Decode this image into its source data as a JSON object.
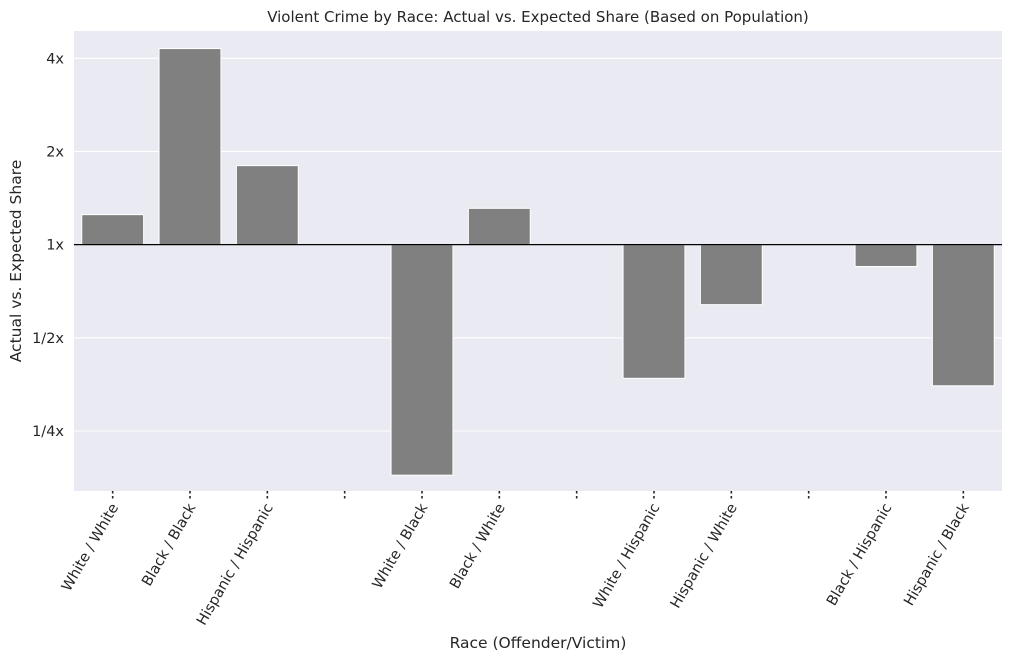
{
  "chart_data": {
    "type": "bar",
    "title": "Violent Crime by Race: Actual vs. Expected Share (Based on Population)",
    "xlabel": "Race (Offender/Victim)",
    "ylabel": "Actual vs. Expected Share",
    "y_scale": "log2",
    "baseline": 1,
    "ylim": [
      0.16,
      4.9
    ],
    "yticks": [
      0.25,
      0.5,
      1,
      2,
      4
    ],
    "ytick_labels": [
      "1/4x",
      "1/2x",
      "1x",
      "2x",
      "4x"
    ],
    "categories": [
      "White / White",
      "Black / Black",
      "Hispanic / Hispanic",
      "",
      "White / Black",
      "Black / White",
      "",
      "White / Hispanic",
      "Hispanic / White",
      "",
      "Black / Hispanic",
      "Hispanic / Black"
    ],
    "values": [
      1.25,
      4.3,
      1.8,
      null,
      0.18,
      1.31,
      null,
      0.37,
      0.64,
      null,
      0.85,
      0.35
    ],
    "grid": true,
    "colors": {
      "bar": "#808080",
      "plot_bg": "#eaeaf2",
      "grid": "#ffffff",
      "baseline": "#000000"
    }
  }
}
